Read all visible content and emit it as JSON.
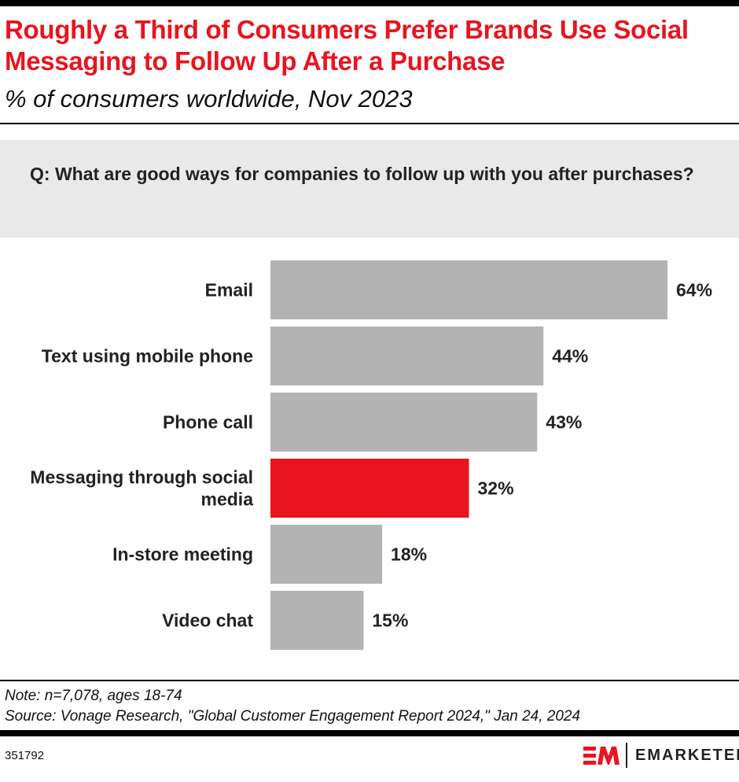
{
  "header": {
    "title": "Roughly a Third of Consumers Prefer Brands Use Social Messaging to Follow Up After a Purchase",
    "subtitle": "% of consumers worldwide, Nov 2023"
  },
  "question": "Q: What are good ways for companies to follow up with you after purchases?",
  "chart_data": {
    "type": "bar",
    "orientation": "horizontal",
    "categories": [
      "Email",
      "Text using mobile phone",
      "Phone call",
      "Messaging through social media",
      "In-store meeting",
      "Video chat"
    ],
    "values": [
      64,
      44,
      43,
      32,
      18,
      15
    ],
    "labels": [
      "64%",
      "44%",
      "43%",
      "32%",
      "18%",
      "15%"
    ],
    "highlight_index": 3,
    "colors": {
      "default": "#b3b3b3",
      "highlight": "#e8141f"
    },
    "xlim": [
      0,
      64
    ],
    "grid": false
  },
  "footer": {
    "note": "Note: n=7,078, ages 18-74",
    "source": "Source: Vonage Research, \"Global Customer Engagement Report 2024,\" Jan 24, 2024",
    "chart_id": "351792",
    "brand": "EMARKETER",
    "logo_mark": "EM"
  }
}
